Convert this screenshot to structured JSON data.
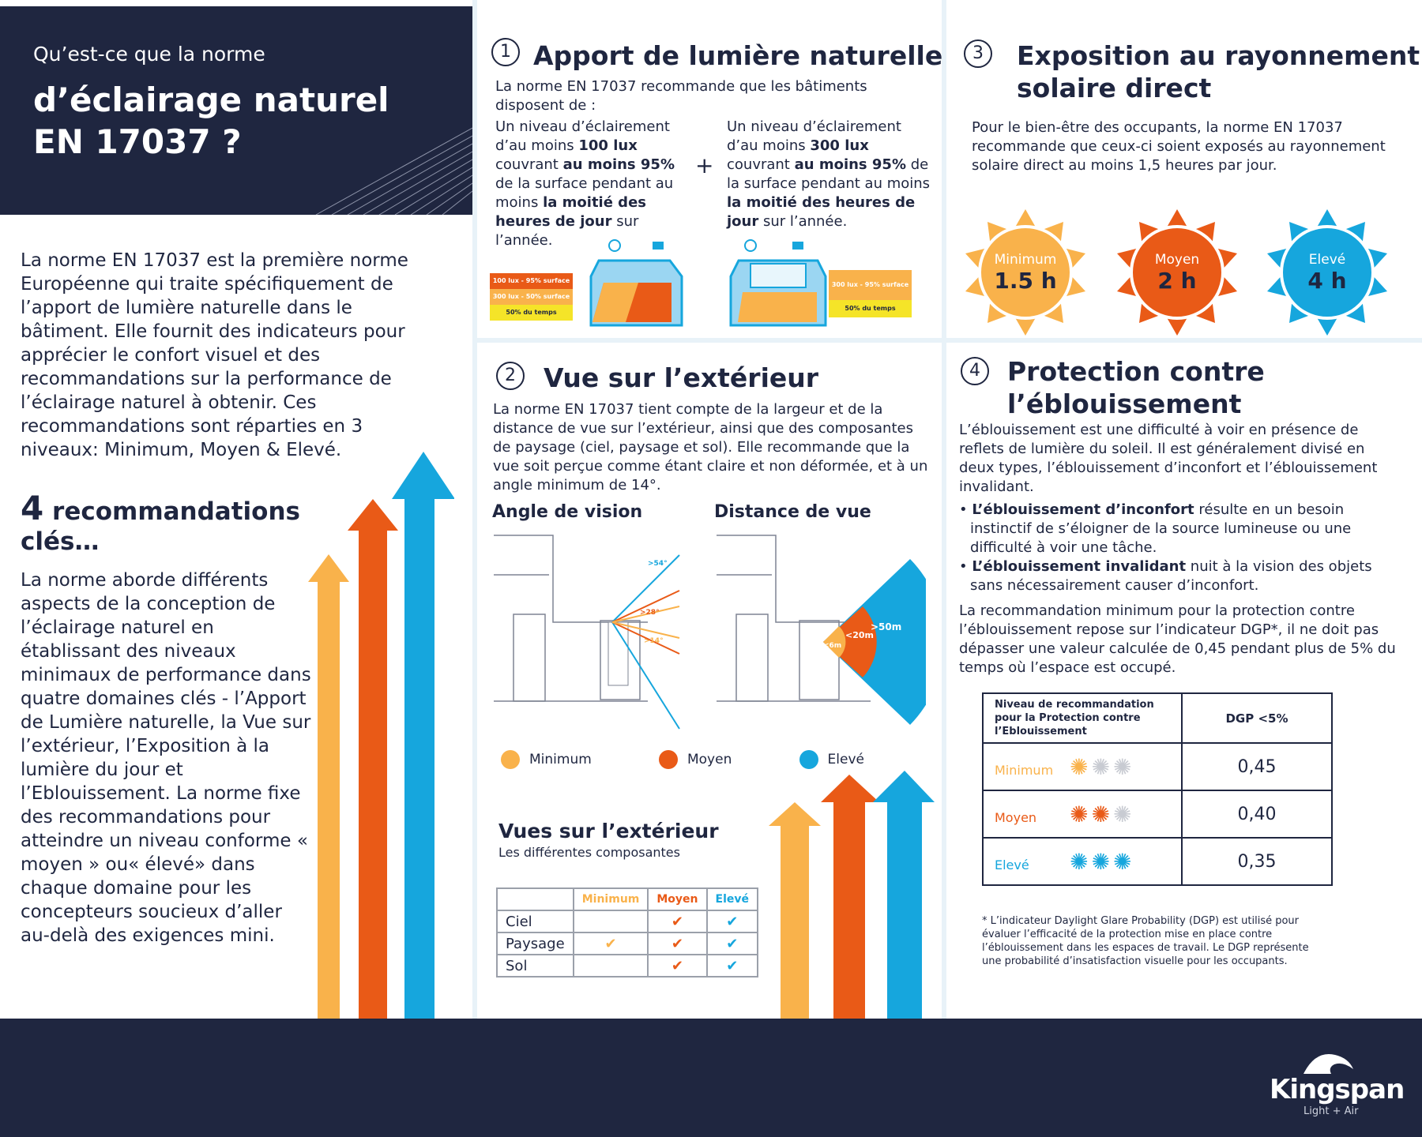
{
  "hero": {
    "question": "Qu’est-ce que la norme",
    "title_line1": "d’éclairage naturel",
    "title_line2": "EN 17037 ?"
  },
  "intro": "La norme EN 17037 est la première norme Européenne qui traite spécifiquement de l’apport de lumière naturelle dans le bâtiment. Elle fournit des indicateurs pour apprécier le confort visuel et des recommandations sur la performance de l’éclairage naturel à obtenir. Ces recommandations sont réparties en 3 niveaux: Minimum, Moyen & Elevé.",
  "key": {
    "number": "4",
    "title_a": "recommandations",
    "title_b": "clés…",
    "body": "La norme aborde différents aspects de la conception de l’éclairage naturel en établissant des niveaux minimaux de performance dans quatre domaines clés - l’Apport de Lumière naturelle, la Vue sur l’extérieur, l’Exposition à la lumière du jour et l’Eblouissement. La norme fixe des recommandations pour atteindre un niveau conforme « moyen » ou« élevé» dans chaque domaine pour les concepteurs soucieux d’aller au-delà des exigences mini."
  },
  "s1": {
    "num": "1",
    "title": "Apport de lumière naturelle",
    "intro": "La norme EN 17037 recommande que les bâtiments disposent de :",
    "plus": "+",
    "colA": {
      "a": "Un niveau d’éclairement d’au moins ",
      "b": "100 lux",
      "c": " couvrant ",
      "d": "au moins 95%",
      "e": " de la surface pendant au moins ",
      "f": "la moitié des heures de jour",
      "g": " sur l’année."
    },
    "colB": {
      "a": "Un niveau d’éclairement d’au moins ",
      "b": "300 lux",
      "c": " couvrant ",
      "d": "au moins 95%",
      "e": " de la surface pendant au moins ",
      "f": "la moitié des heures de jour",
      "g": " sur l’année."
    },
    "legA": [
      "100 lux - 95% surface",
      "300 lux - 50% surface",
      "50% du temps"
    ],
    "legB": [
      "300 lux - 95% surface",
      "50% du temps"
    ]
  },
  "s2": {
    "num": "2",
    "title": "Vue sur l’extérieur",
    "body": "La norme EN 17037 tient compte de la largeur et de la distance de vue sur l’extérieur, ainsi que des composantes de paysage (ciel, paysage et sol). Elle recommande que la vue soit perçue comme étant claire et non déformée, et à un angle minimum de 14°.",
    "angle_title": "Angle de vision",
    "distance_title": "Distance de vue",
    "angles": [
      ">54°",
      ">28°",
      ">14°"
    ],
    "distances": [
      "<6m",
      "<20m",
      ">50m"
    ],
    "legend": [
      "Minimum",
      "Moyen",
      "Elevé"
    ],
    "views_title": "Vues sur l’extérieur",
    "views_sub": "Les différentes composantes",
    "table_headers": [
      "Minimum",
      "Moyen",
      "Elevé"
    ],
    "rows": [
      {
        "label": "Ciel",
        "min": "",
        "moy": "✔",
        "ele": "✔"
      },
      {
        "label": "Paysage",
        "min": "✔",
        "moy": "✔",
        "ele": "✔"
      },
      {
        "label": "Sol",
        "min": "",
        "moy": "✔",
        "ele": "✔"
      }
    ]
  },
  "s3": {
    "num": "3",
    "title_a": "Exposition au rayonnement",
    "title_b": "solaire direct",
    "body": "Pour le bien-être des occupants, la norme EN 17037 recommande que ceux-ci soient exposés au rayonnement solaire direct au moins 1,5 heures par jour.",
    "suns": [
      {
        "label": "Minimum",
        "value": "1.5 h"
      },
      {
        "label": "Moyen",
        "value": "2 h"
      },
      {
        "label": "Elevé",
        "value": "4 h"
      }
    ]
  },
  "s4": {
    "num": "4",
    "title_a": "Protection contre",
    "title_b": "l’éblouissement",
    "body": "L’éblouissement est une difficulté à voir en présence de reflets de lumière du soleil. Il est généralement divisé en deux types, l’éblouissement d’inconfort et l’éblouissement invalidant.",
    "b1_bold": "L’éblouissement d’inconfort",
    "b1_rest": " résulte en un besoin instinctif de s’éloigner de la source lumineuse ou une difficulté à voir une tâche.",
    "b2_bold": "L’éblouissement invalidant",
    "b2_rest": " nuit à la vision des objets sans nécessairement causer d’inconfort.",
    "body2": "La recommandation minimum pour la protection contre l’éblouissement repose sur l’indicateur DGP*, il ne doit pas dépasser une valeur calculée de 0,45 pendant plus de 5% du temps où l’espace est occupé.",
    "th1": "Niveau de recommandation pour la Protection contre l’Eblouissement",
    "th2": "DGP <5%",
    "rows": [
      {
        "label": "Minimum",
        "value": "0,45"
      },
      {
        "label": "Moyen",
        "value": "0,40"
      },
      {
        "label": "Elevé",
        "value": "0,35"
      }
    ],
    "footnote": "* L’indicateur Daylight Glare Probability (DGP) est utilisé pour évaluer l’efficacité de la protection mise en place contre l’éblouissement dans les espaces de travail. Le DGP représente une probabilité d’insatisfaction visuelle pour les occupants."
  },
  "brand": {
    "name": "Kingspan",
    "tagline": "Light + Air"
  },
  "colors": {
    "navy": "#1f2640",
    "min": "#f9b24b",
    "moy": "#e95a17",
    "ele": "#16a6dd",
    "yellow": "#f5e428"
  }
}
